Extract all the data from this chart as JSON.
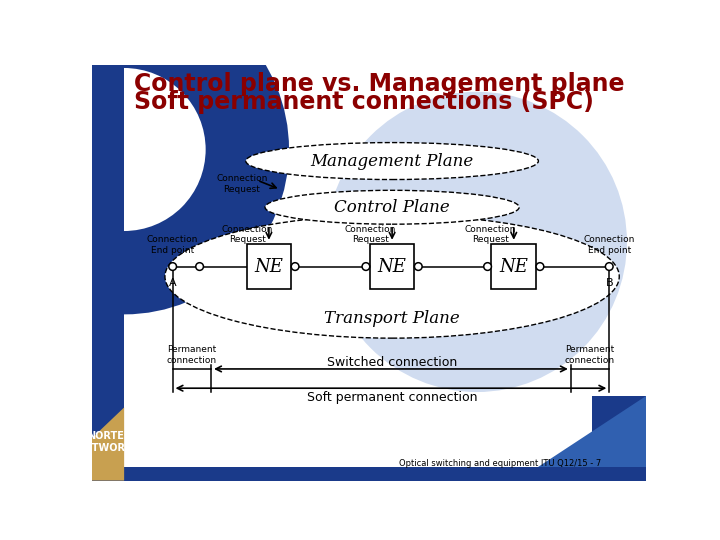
{
  "title_line1": "Control plane vs. Management plane",
  "title_line2": "Soft permanent connections (SPC)",
  "title_color": "#8B0000",
  "bg_color": "#FFFFFF",
  "mgmt_plane_label": "Management Plane",
  "ctrl_plane_label": "Control Plane",
  "transport_plane_label": "Transport Plane",
  "ne_label": "NE",
  "conn_request_label": "Connection\nRequest",
  "conn_endpoint_label": "Connection\nEnd point",
  "permanent_conn_label": "Permanent\nconnection",
  "switched_conn_label": "Switched connection",
  "soft_perm_label": "Soft permanent connection",
  "footer": "Optical switching and equipment ITU Q12/15 - 7",
  "a_label": "A",
  "b_label": "B",
  "blue_dark": "#1A3A8A",
  "blue_mid": "#3060B0",
  "blue_light": "#C8D8F0",
  "gold": "#C8A050",
  "watermark_color": "#D0DCF0"
}
